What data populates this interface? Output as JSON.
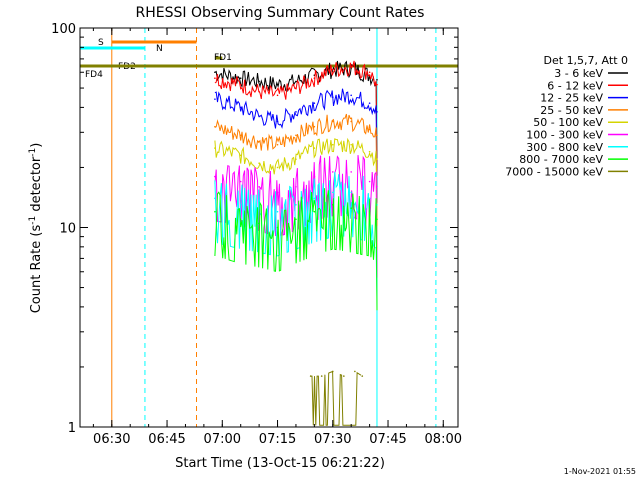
{
  "chart_data": {
    "type": "line",
    "title": "RHESSI Observing Summary Count Rates",
    "xlabel": "Start Time (13-Oct-15 06:21:22)",
    "ylabel": "Count Rate (s",
    "ylabel_sup": "-1",
    "ylabel_rest": " detector",
    "ylabel_sup2": "-1",
    "ylabel_close": ")",
    "y_scale": "log",
    "ylim": [
      1,
      100
    ],
    "xlim": [
      "06:21:22",
      "08:04"
    ],
    "x_ticks": [
      "06:30",
      "06:45",
      "07:00",
      "07:15",
      "07:30",
      "07:45",
      "08:00"
    ],
    "y_ticks": [
      "1",
      "10",
      "100"
    ],
    "legend_header": "Det 1,5,7, Att 0",
    "legend_position": "right",
    "timestamp": "1-Nov-2021 01:55",
    "series": [
      {
        "name": "3 - 6 keV",
        "color": "#000000",
        "x": [
          "06:58",
          "07:05",
          "07:10",
          "07:15",
          "07:20",
          "07:25",
          "07:30",
          "07:35",
          "07:40",
          "07:42"
        ],
        "values": [
          60,
          56,
          54,
          52,
          54,
          58,
          62,
          63,
          58,
          55
        ]
      },
      {
        "name": "6 - 12 keV",
        "color": "#ff0000",
        "x": [
          "06:58",
          "07:05",
          "07:10",
          "07:15",
          "07:20",
          "07:25",
          "07:30",
          "07:35",
          "07:40",
          "07:42"
        ],
        "values": [
          56,
          52,
          48,
          46,
          50,
          56,
          62,
          64,
          60,
          52
        ]
      },
      {
        "name": "12 - 25 keV",
        "color": "#0000ff",
        "x": [
          "06:58",
          "07:05",
          "07:10",
          "07:15",
          "07:20",
          "07:25",
          "07:30",
          "07:35",
          "07:40",
          "07:42"
        ],
        "values": [
          44,
          40,
          36,
          34,
          38,
          42,
          45,
          46,
          42,
          38
        ]
      },
      {
        "name": "25 - 50 keV",
        "color": "#ff7f00",
        "x": [
          "06:58",
          "07:05",
          "07:10",
          "07:15",
          "07:20",
          "07:25",
          "07:30",
          "07:35",
          "07:40",
          "07:42"
        ],
        "values": [
          32,
          29,
          27,
          26,
          29,
          32,
          34,
          34,
          31,
          29
        ]
      },
      {
        "name": "50 - 100 keV",
        "color": "#d4d400",
        "x": [
          "06:58",
          "07:05",
          "07:10",
          "07:15",
          "07:20",
          "07:25",
          "07:30",
          "07:35",
          "07:40",
          "07:42"
        ],
        "values": [
          25,
          23,
          21,
          20,
          22,
          25,
          26,
          26,
          24,
          22
        ]
      },
      {
        "name": "100 - 300 keV",
        "color": "#ff00ff",
        "x": [
          "06:58",
          "07:05",
          "07:10",
          "07:15",
          "07:20",
          "07:25",
          "07:30",
          "07:35",
          "07:40",
          "07:42"
        ],
        "values": [
          18,
          17,
          16,
          15,
          16,
          18,
          19,
          19,
          17,
          16
        ]
      },
      {
        "name": "300 - 800 keV",
        "color": "#00ffff",
        "x": [
          "06:58",
          "07:05",
          "07:10",
          "07:15",
          "07:20",
          "07:25",
          "07:30",
          "07:35",
          "07:40",
          "07:42"
        ],
        "values": [
          14,
          13,
          12.5,
          12,
          13,
          14,
          15,
          15,
          14,
          13
        ]
      },
      {
        "name": "800 - 7000 keV",
        "color": "#00ff00",
        "x": [
          "06:58",
          "07:05",
          "07:10",
          "07:15",
          "07:20",
          "07:25",
          "07:30",
          "07:35",
          "07:40",
          "07:42"
        ],
        "values": [
          12,
          11,
          10.5,
          10,
          11,
          12,
          13,
          12.5,
          12,
          11
        ]
      },
      {
        "name": "7000 - 15000 keV",
        "color": "#808000",
        "x": [
          "07:24",
          "07:27",
          "07:30",
          "07:33",
          "07:36",
          "07:38"
        ],
        "values": [
          1.8,
          1.8,
          1.9,
          1.8,
          1.9,
          1.8
        ]
      }
    ],
    "flags": [
      {
        "name": "S",
        "color": "#ff7f00",
        "x_start": "06:30",
        "x_end": "06:53"
      },
      {
        "name": "N",
        "color": "#00ffff",
        "x_start": "06:21:22",
        "x_end": "06:39"
      },
      {
        "name": "FD1",
        "color": "#808000",
        "x_start": "06:58",
        "x_end": "07:00"
      },
      {
        "name": "FD2",
        "color": "#808000",
        "x_start": "06:30",
        "x_end": "06:32"
      },
      {
        "name": "FD4",
        "color": "#808000",
        "x_start": "06:21:22",
        "x_end": "08:04"
      }
    ],
    "vertical_markers": [
      {
        "name": "night-start",
        "color": "#00ffff",
        "x": "06:39",
        "style": "dashed"
      },
      {
        "name": "saa-end",
        "color": "#ff7f00",
        "x": "06:53",
        "style": "dashed"
      },
      {
        "name": "night-end",
        "color": "#00ffff",
        "x": "07:42",
        "style": "solid"
      },
      {
        "name": "night-start-2",
        "color": "#00ffff",
        "x": "07:58",
        "style": "dashed"
      },
      {
        "name": "saa-start",
        "color": "#ff7f00",
        "x": "06:30",
        "style": "solid"
      }
    ]
  }
}
